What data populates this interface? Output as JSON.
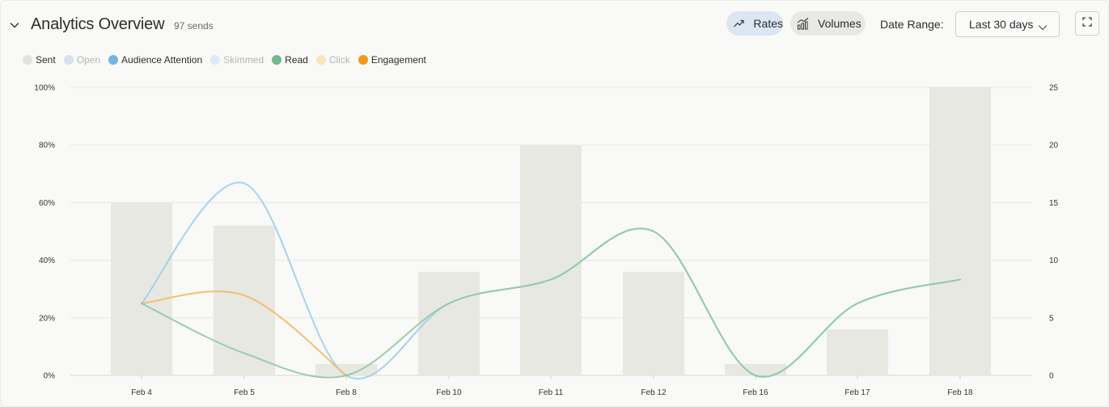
{
  "header": {
    "title": "Analytics Overview",
    "sends": "97 sends",
    "rates_label": "Rates",
    "volumes_label": "Volumes",
    "date_range_label": "Date Range:",
    "date_range_value": "Last 30 days"
  },
  "icons": {
    "collapse": "chevron-down-icon",
    "rates": "trend-up-icon",
    "volumes": "bar-trend-icon",
    "date_dropdown": "chevron-down-icon",
    "expand": "fullscreen-icon"
  },
  "legend": [
    {
      "name": "Sent",
      "color": "#e3e3de",
      "active": true
    },
    {
      "name": "Open",
      "color": "#d9dfee",
      "active": false
    },
    {
      "name": "Audience Attention",
      "color": "#72b6e6",
      "active": true
    },
    {
      "name": "Skimmed",
      "color": "#dcebf5",
      "active": false
    },
    {
      "name": "Read",
      "color": "#72b990",
      "active": true
    },
    {
      "name": "Click",
      "color": "#f8e5bf",
      "active": false
    },
    {
      "name": "Engagement",
      "color": "#f3991f",
      "active": true
    }
  ],
  "chart_data": {
    "type": "bar",
    "categories": [
      "Feb 4",
      "Feb 5",
      "Feb 8",
      "Feb 10",
      "Feb 11",
      "Feb 12",
      "Feb 16",
      "Feb 17",
      "Feb 18"
    ],
    "left_axis": {
      "ticks": [
        "0%",
        "20%",
        "40%",
        "60%",
        "80%",
        "100%"
      ],
      "ylim": [
        0,
        100
      ]
    },
    "right_axis": {
      "ticks": [
        "0",
        "5",
        "10",
        "15",
        "20",
        "25"
      ],
      "ylim": [
        0,
        25
      ]
    },
    "bars": {
      "name": "Sent",
      "axis": "right",
      "color": "#e8e8e2",
      "values": [
        15,
        13,
        1,
        9,
        20,
        9,
        1,
        4,
        25
      ]
    },
    "series": [
      {
        "name": "Audience Attention",
        "axis": "left",
        "color": "#9fcdea",
        "values": [
          25,
          66.7,
          0,
          25,
          33.3,
          50,
          0,
          25,
          33.3
        ]
      },
      {
        "name": "Engagement",
        "axis": "left",
        "color": "#f5b860",
        "values": [
          25,
          27.8,
          0,
          null,
          null,
          null,
          null,
          null,
          null
        ]
      },
      {
        "name": "Read",
        "axis": "left",
        "color": "#8fc9a2",
        "values": [
          25,
          7.7,
          0,
          25,
          33.3,
          50,
          0,
          25,
          33.3
        ]
      }
    ],
    "grid": true,
    "legend_position": "top-left"
  }
}
